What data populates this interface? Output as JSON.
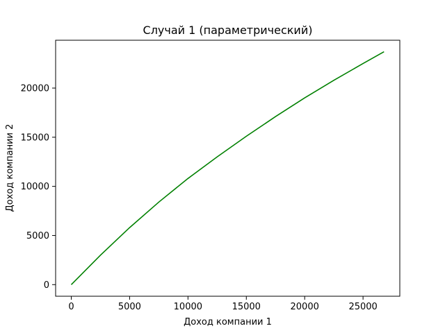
{
  "chart_data": {
    "type": "line",
    "title": "Случай 1 (параметрический)",
    "xlabel": "Доход компании 1",
    "ylabel": "Доход компании 2",
    "xlim": [
      -1340,
      28150
    ],
    "ylim": [
      -1180,
      24870
    ],
    "xticks": [
      0,
      5000,
      10000,
      15000,
      20000,
      25000
    ],
    "yticks": [
      0,
      5000,
      10000,
      15000,
      20000
    ],
    "grid": false,
    "series": [
      {
        "color": "#008000",
        "x": [
          0,
          2500,
          5000,
          7500,
          10000,
          12500,
          15000,
          17500,
          20000,
          22500,
          25000,
          26800
        ],
        "y": [
          0,
          3000,
          5800,
          8400,
          10800,
          13000,
          15100,
          17100,
          19000,
          20800,
          22500,
          23700
        ]
      }
    ]
  }
}
